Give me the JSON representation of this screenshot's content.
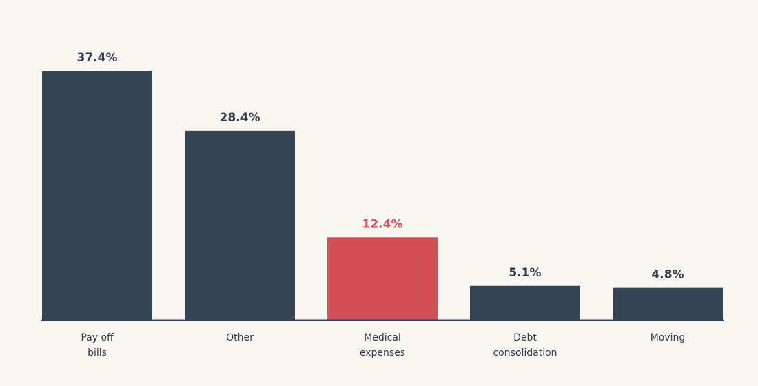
{
  "chart_data": {
    "type": "bar",
    "categories": [
      [
        "Pay off",
        "bills"
      ],
      [
        "Other"
      ],
      [
        "Medical",
        "expenses"
      ],
      [
        "Debt",
        "consolidation"
      ],
      [
        "Moving"
      ]
    ],
    "values": [
      37.4,
      28.4,
      12.4,
      5.1,
      4.8
    ],
    "value_labels": [
      "37.4%",
      "28.4%",
      "12.4%",
      "5.1%",
      "4.8%"
    ],
    "highlight_index": 2,
    "title": "",
    "xlabel": "",
    "ylabel": "",
    "ylim": [
      0,
      37.4
    ],
    "grid": false,
    "legend": "none",
    "colors": {
      "bar": "#344454",
      "highlight": "#d45057",
      "axis": "#344454",
      "label": "#2d3b4a",
      "background": "#f9f6f2"
    }
  }
}
